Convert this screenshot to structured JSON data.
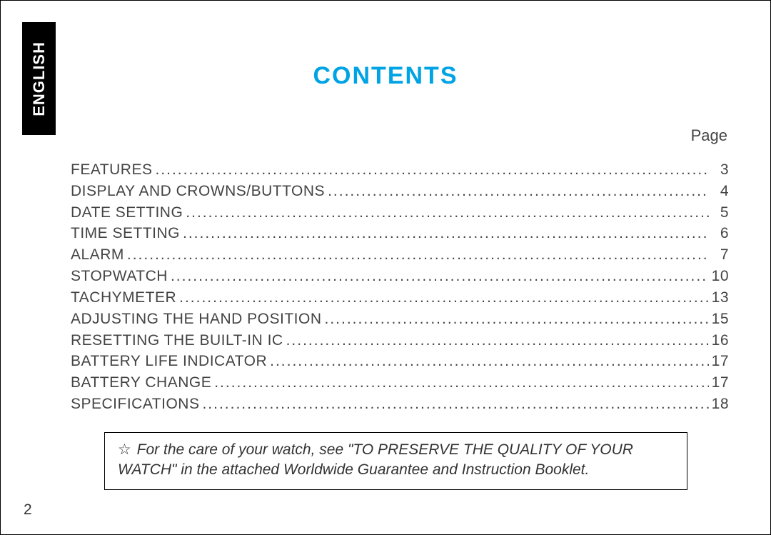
{
  "tab_label": "ENGLISH",
  "title": "CONTENTS",
  "page_header": "Page",
  "page_number": "2",
  "leader_glyph": "..............................................................................................................................................................................................................................",
  "toc": [
    {
      "label": "FEATURES",
      "page": "3"
    },
    {
      "label": "DISPLAY AND CROWNS/BUTTONS",
      "page": "4"
    },
    {
      "label": "DATE SETTING",
      "page": "5"
    },
    {
      "label": "TIME SETTING",
      "page": "6"
    },
    {
      "label": "ALARM",
      "page": "7"
    },
    {
      "label": "STOPWATCH",
      "page": "10"
    },
    {
      "label": "TACHYMETER",
      "page": "13"
    },
    {
      "label": "ADJUSTING THE HAND POSITION",
      "page": "15"
    },
    {
      "label": "RESETTING THE BUILT-IN IC",
      "page": "16"
    },
    {
      "label": "BATTERY LIFE INDICATOR",
      "page": "17"
    },
    {
      "label": "BATTERY CHANGE",
      "page": "17"
    },
    {
      "label": "SPECIFICATIONS",
      "page": "18"
    }
  ],
  "note": {
    "star": "☆",
    "text": "For the care of your watch, see \"TO PRESERVE THE QUALITY OF YOUR WATCH\" in the attached Worldwide Guarantee and Instruction Booklet."
  },
  "colors": {
    "title": "#00a4e4",
    "text": "#444444",
    "tab_bg": "#000000",
    "tab_fg": "#ffffff",
    "border": "#000000",
    "background": "#ffffff"
  }
}
